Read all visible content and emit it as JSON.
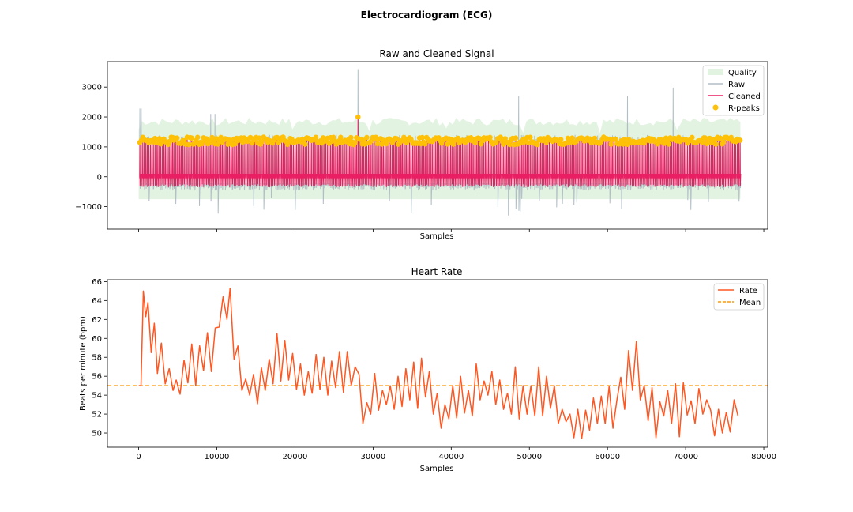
{
  "figure_title": "Electrocardiogram (ECG)",
  "colors": {
    "quality": "#e3f3e1",
    "raw": "#b0bec5",
    "cleaned": "#e91e63",
    "rpeaks": "#ffc107",
    "rate": "#ff5722",
    "mean": "#ff9800"
  },
  "chart_data": [
    {
      "type": "line",
      "title": "Raw and Cleaned Signal",
      "xlabel": "Samples",
      "ylabel": "",
      "xlim": [
        -4000,
        80500
      ],
      "ylim": [
        -1750,
        3850
      ],
      "x_ticks_labeled": false,
      "y_ticks": [
        -1000,
        0,
        1000,
        2000,
        3000
      ],
      "y_tick_labels": [
        "−1000",
        "0",
        "1000",
        "2000",
        "3000"
      ],
      "legend_position": "top-right",
      "legend": [
        {
          "label": "Quality",
          "kind": "area",
          "color": "#e3f3e1"
        },
        {
          "label": "Raw",
          "kind": "line",
          "color": "#b0bec5"
        },
        {
          "label": "Cleaned",
          "kind": "line",
          "color": "#e91e63"
        },
        {
          "label": "R-peaks",
          "kind": "marker",
          "color": "#ffc107"
        }
      ],
      "series": [
        {
          "name": "Quality",
          "kind": "area",
          "x": [
            0,
            77000
          ],
          "lower": -750,
          "upper_typical": 1900
        },
        {
          "name": "Raw",
          "kind": "line",
          "x_range": [
            0,
            77000
          ],
          "typical_peak": 1250,
          "typical_trough": -300,
          "notable_spikes_x": [
            250,
            9200,
            9700,
            28000,
            48600,
            62500,
            68400
          ],
          "notable_spikes_y": [
            2280,
            2100,
            2100,
            3600,
            2700,
            2700,
            2980
          ]
        },
        {
          "name": "Cleaned",
          "kind": "line",
          "x_range": [
            0,
            77000
          ],
          "typical_peak": 1200,
          "typical_trough": -250
        },
        {
          "name": "R-peaks",
          "kind": "scatter",
          "x_range": [
            0,
            77000
          ],
          "typical_y": 1200,
          "notable": [
            [
              28000,
              2000
            ]
          ]
        }
      ]
    },
    {
      "type": "line",
      "title": "Heart Rate",
      "xlabel": "Samples",
      "ylabel": "Beats per minute (bpm)",
      "xlim": [
        -4000,
        80500
      ],
      "ylim": [
        48.5,
        66.2
      ],
      "x_ticks": [
        0,
        10000,
        20000,
        30000,
        40000,
        50000,
        60000,
        70000,
        80000
      ],
      "x_tick_labels": [
        "0",
        "10000",
        "20000",
        "30000",
        "40000",
        "50000",
        "60000",
        "70000",
        "80000"
      ],
      "y_ticks": [
        50,
        52,
        54,
        56,
        58,
        60,
        62,
        64,
        66
      ],
      "y_tick_labels": [
        "50",
        "52",
        "54",
        "56",
        "58",
        "60",
        "62",
        "64",
        "66"
      ],
      "legend_position": "top-right",
      "legend": [
        {
          "label": "Rate",
          "kind": "line",
          "color": "#ff5722"
        },
        {
          "label": "Mean",
          "kind": "dashed",
          "color": "#ff9800"
        }
      ],
      "series": [
        {
          "name": "Rate",
          "kind": "line",
          "x": [
            0,
            300,
            600,
            900,
            1200,
            1600,
            2000,
            2400,
            2900,
            3400,
            3900,
            4400,
            4800,
            5300,
            5800,
            6300,
            6800,
            7300,
            7800,
            8300,
            8800,
            9300,
            9800,
            10300,
            10800,
            11300,
            11700,
            12200,
            12700,
            13200,
            13700,
            14200,
            14700,
            15200,
            15700,
            16200,
            16700,
            17200,
            17700,
            18200,
            18700,
            19200,
            19700,
            20200,
            20700,
            21200,
            21700,
            22200,
            22700,
            23200,
            23700,
            24200,
            24700,
            25200,
            25700,
            26200,
            26700,
            27200,
            27700,
            28200,
            28700,
            29200,
            29700,
            30200,
            30700,
            31200,
            31700,
            32200,
            32700,
            33200,
            33700,
            34200,
            34700,
            35200,
            35700,
            36200,
            36700,
            37200,
            37700,
            38200,
            38700,
            39200,
            39700,
            40200,
            40700,
            41200,
            41700,
            42200,
            42700,
            43200,
            43700,
            44200,
            44700,
            45200,
            45700,
            46200,
            46700,
            47200,
            47700,
            48200,
            48700,
            49200,
            49700,
            50200,
            50700,
            51200,
            51700,
            52200,
            52700,
            53200,
            53700,
            54200,
            54700,
            55200,
            55700,
            56200,
            56700,
            57200,
            57700,
            58200,
            58700,
            59200,
            59700,
            60200,
            60700,
            61200,
            61700,
            62200,
            62700,
            63200,
            63700,
            64200,
            64700,
            65200,
            65700,
            66200,
            66700,
            67200,
            67700,
            68200,
            68700,
            69200,
            69700,
            70200,
            70700,
            71200,
            71700,
            72200,
            72700,
            73200,
            73700,
            74200,
            74700,
            75200,
            75700,
            76200,
            76700
          ],
          "y": [
            55.0,
            55.0,
            65.0,
            62.3,
            63.8,
            58.5,
            61.6,
            56.3,
            59.5,
            55.2,
            56.8,
            54.5,
            55.6,
            54.1,
            57.7,
            55.3,
            59.4,
            55.0,
            59.2,
            56.6,
            60.6,
            56.5,
            61.1,
            61.2,
            64.4,
            62.0,
            65.3,
            57.8,
            59.2,
            54.5,
            55.7,
            54.0,
            56.2,
            53.1,
            56.9,
            54.5,
            57.8,
            55.2,
            60.5,
            55.5,
            59.8,
            55.6,
            58.4,
            54.6,
            57.3,
            54.0,
            56.5,
            54.2,
            58.3,
            54.6,
            58.0,
            54.0,
            57.6,
            54.8,
            58.6,
            54.3,
            58.6,
            55.0,
            57.0,
            56.2,
            51.0,
            53.2,
            52.0,
            56.3,
            52.4,
            54.5,
            53.0,
            55.0,
            52.5,
            56.0,
            52.8,
            56.8,
            53.5,
            57.5,
            52.6,
            57.9,
            53.8,
            56.5,
            52.0,
            54.2,
            50.5,
            53.0,
            51.5,
            55.0,
            51.6,
            56.0,
            52.1,
            54.5,
            51.8,
            57.3,
            53.5,
            55.5,
            54.0,
            56.5,
            53.0,
            55.6,
            52.5,
            54.2,
            52.0,
            57.0,
            51.5,
            55.0,
            52.0,
            55.0,
            51.8,
            57.0,
            51.8,
            56.0,
            52.6,
            55.0,
            51.0,
            52.5,
            51.2,
            52.0,
            49.5,
            52.5,
            49.4,
            52.4,
            50.3,
            53.7,
            51.0,
            53.9,
            51.0,
            54.9,
            50.5,
            53.5,
            55.9,
            52.5,
            58.7,
            54.5,
            59.7,
            53.5,
            55.0,
            51.3,
            54.8,
            49.5,
            53.3,
            51.8,
            54.5,
            51.0,
            55.2,
            49.6,
            55.3,
            51.9,
            53.4,
            51.0,
            54.7,
            52.0,
            53.5,
            52.4,
            49.7,
            52.5,
            50.0,
            52.2,
            50.1,
            53.5,
            51.8
          ]
        },
        {
          "name": "Mean",
          "kind": "dashed",
          "y": 55.0
        }
      ]
    }
  ]
}
